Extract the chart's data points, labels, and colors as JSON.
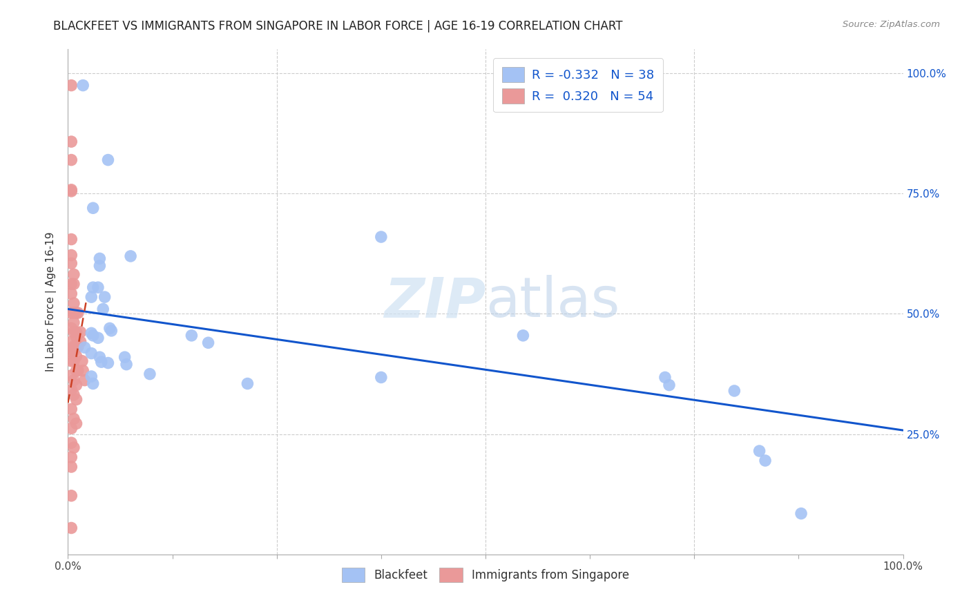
{
  "title": "BLACKFEET VS IMMIGRANTS FROM SINGAPORE IN LABOR FORCE | AGE 16-19 CORRELATION CHART",
  "source": "Source: ZipAtlas.com",
  "ylabel": "In Labor Force | Age 16-19",
  "xlim": [
    0.0,
    1.0
  ],
  "ylim": [
    0.0,
    1.05
  ],
  "blue_R": "-0.332",
  "blue_N": "38",
  "pink_R": "0.320",
  "pink_N": "54",
  "blue_dot_color": "#a4c2f4",
  "pink_dot_color": "#ea9999",
  "blue_line_color": "#1155cc",
  "pink_line_color": "#cc4125",
  "grid_color": "#cccccc",
  "right_axis_color": "#1155cc",
  "watermark_color": "#cfe2f3",
  "blue_scatter": [
    [
      0.018,
      0.975
    ],
    [
      0.048,
      0.82
    ],
    [
      0.075,
      0.62
    ],
    [
      0.03,
      0.72
    ],
    [
      0.038,
      0.6
    ],
    [
      0.038,
      0.615
    ],
    [
      0.03,
      0.555
    ],
    [
      0.036,
      0.555
    ],
    [
      0.028,
      0.535
    ],
    [
      0.044,
      0.535
    ],
    [
      0.042,
      0.51
    ],
    [
      0.05,
      0.47
    ],
    [
      0.052,
      0.465
    ],
    [
      0.028,
      0.46
    ],
    [
      0.03,
      0.455
    ],
    [
      0.036,
      0.45
    ],
    [
      0.02,
      0.43
    ],
    [
      0.028,
      0.418
    ],
    [
      0.038,
      0.41
    ],
    [
      0.04,
      0.4
    ],
    [
      0.048,
      0.398
    ],
    [
      0.028,
      0.37
    ],
    [
      0.03,
      0.355
    ],
    [
      0.068,
      0.41
    ],
    [
      0.07,
      0.395
    ],
    [
      0.098,
      0.375
    ],
    [
      0.148,
      0.455
    ],
    [
      0.168,
      0.44
    ],
    [
      0.215,
      0.355
    ],
    [
      0.375,
      0.66
    ],
    [
      0.375,
      0.368
    ],
    [
      0.545,
      0.455
    ],
    [
      0.715,
      0.368
    ],
    [
      0.72,
      0.352
    ],
    [
      0.798,
      0.34
    ],
    [
      0.828,
      0.215
    ],
    [
      0.835,
      0.195
    ],
    [
      0.878,
      0.085
    ]
  ],
  "pink_scatter": [
    [
      0.004,
      0.975
    ],
    [
      0.004,
      0.858
    ],
    [
      0.004,
      0.82
    ],
    [
      0.004,
      0.755
    ],
    [
      0.004,
      0.758
    ],
    [
      0.004,
      0.655
    ],
    [
      0.004,
      0.622
    ],
    [
      0.004,
      0.605
    ],
    [
      0.007,
      0.582
    ],
    [
      0.004,
      0.562
    ],
    [
      0.007,
      0.562
    ],
    [
      0.004,
      0.542
    ],
    [
      0.007,
      0.522
    ],
    [
      0.004,
      0.502
    ],
    [
      0.007,
      0.502
    ],
    [
      0.01,
      0.502
    ],
    [
      0.007,
      0.482
    ],
    [
      0.004,
      0.47
    ],
    [
      0.007,
      0.462
    ],
    [
      0.01,
      0.462
    ],
    [
      0.01,
      0.452
    ],
    [
      0.004,
      0.442
    ],
    [
      0.007,
      0.432
    ],
    [
      0.01,
      0.432
    ],
    [
      0.012,
      0.432
    ],
    [
      0.004,
      0.422
    ],
    [
      0.007,
      0.422
    ],
    [
      0.01,
      0.412
    ],
    [
      0.004,
      0.402
    ],
    [
      0.007,
      0.402
    ],
    [
      0.01,
      0.382
    ],
    [
      0.012,
      0.382
    ],
    [
      0.004,
      0.372
    ],
    [
      0.007,
      0.362
    ],
    [
      0.01,
      0.352
    ],
    [
      0.004,
      0.342
    ],
    [
      0.007,
      0.332
    ],
    [
      0.01,
      0.322
    ],
    [
      0.004,
      0.302
    ],
    [
      0.007,
      0.282
    ],
    [
      0.01,
      0.272
    ],
    [
      0.004,
      0.262
    ],
    [
      0.004,
      0.232
    ],
    [
      0.007,
      0.222
    ],
    [
      0.004,
      0.202
    ],
    [
      0.004,
      0.182
    ],
    [
      0.012,
      0.502
    ],
    [
      0.015,
      0.462
    ],
    [
      0.015,
      0.442
    ],
    [
      0.017,
      0.402
    ],
    [
      0.018,
      0.382
    ],
    [
      0.02,
      0.362
    ],
    [
      0.004,
      0.122
    ],
    [
      0.004,
      0.055
    ]
  ],
  "blue_trendline_x": [
    0.0,
    1.0
  ],
  "blue_trendline_y": [
    0.51,
    0.258
  ],
  "pink_trendline_x": [
    0.0,
    0.022
  ],
  "pink_trendline_y": [
    0.315,
    0.528
  ],
  "xticks": [
    0.0,
    0.125,
    0.25,
    0.375,
    0.5,
    0.625,
    0.75,
    0.875,
    1.0
  ],
  "yticks_left": [
    0.25,
    0.5,
    0.75,
    1.0
  ],
  "ytick_right_labels": [
    "25.0%",
    "50.0%",
    "75.0%",
    "100.0%"
  ],
  "legend_labels": [
    "Blackfeet",
    "Immigrants from Singapore"
  ]
}
